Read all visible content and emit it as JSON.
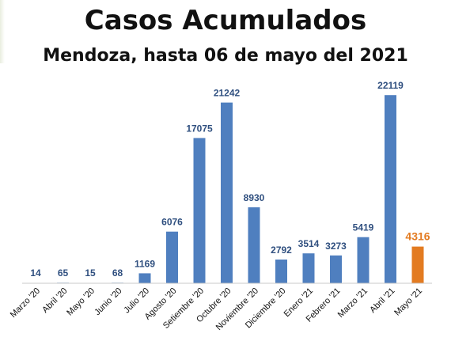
{
  "title": "Casos Acumulados",
  "subtitle": "Mendoza, hasta 06 de mayo del 2021",
  "colors": {
    "bar": "#4f7fbf",
    "highlight": "#e37b21",
    "label": "#2f4f7f"
  },
  "chart_data": {
    "type": "bar",
    "categories": [
      "Marzo '20",
      "Abril '20",
      "Mayo '20",
      "Junio '20",
      "Julio '20",
      "Agosto '20",
      "Setiembre '20",
      "Octubre '20",
      "Noviembre '20",
      "Diciembre '20",
      "Enero '21",
      "Febrero '21",
      "Marzo '21",
      "Abril '21",
      "Mayo '21"
    ],
    "values": [
      14,
      65,
      15,
      68,
      1169,
      6076,
      17075,
      21242,
      8930,
      2792,
      3514,
      3273,
      5419,
      22119,
      4316
    ],
    "value_labels": [
      "14",
      "65",
      "15",
      "68",
      "1169",
      "6076",
      "17075",
      "21242",
      "8930",
      "2792",
      "3514",
      "3273",
      "5419",
      "22119",
      "4316"
    ],
    "highlight_index": 14,
    "title": "Casos Acumulados",
    "subtitle": "Mendoza, hasta 06 de mayo del 2021",
    "xlabel": "",
    "ylabel": "",
    "ylim": [
      0,
      24000
    ],
    "grid": false,
    "legend": "none"
  }
}
